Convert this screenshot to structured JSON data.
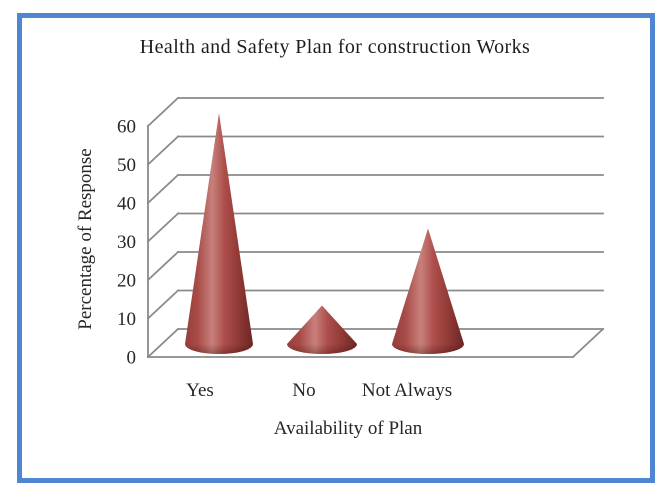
{
  "window": {
    "background_color": "#ffffff",
    "border_color": "#4e86d2"
  },
  "chart_data": {
    "type": "bar",
    "bar_shape": "cone-3d",
    "view": "3d-perspective",
    "title": "Health and Safety Plan for construction Works",
    "xlabel": "Availability of Plan",
    "ylabel": "Percentage of Response",
    "categories": [
      "Yes",
      "No",
      "Not Always"
    ],
    "values": [
      60,
      10,
      30
    ],
    "ylim": [
      0,
      60
    ],
    "yticks": [
      0,
      10,
      20,
      30,
      40,
      50,
      60
    ],
    "grid": true,
    "legend": false,
    "series_color": "#a94845",
    "gridline_color": "#8a8a8a",
    "text_color": "#262626",
    "cone_gradient_stops": [
      {
        "offset": 0,
        "color": "#963f3d"
      },
      {
        "offset": 0.18,
        "color": "#a84a47"
      },
      {
        "offset": 0.4,
        "color": "#c8807b"
      },
      {
        "offset": 0.58,
        "color": "#ad4e4b"
      },
      {
        "offset": 0.82,
        "color": "#8c3633"
      },
      {
        "offset": 1,
        "color": "#6b2624"
      }
    ]
  }
}
